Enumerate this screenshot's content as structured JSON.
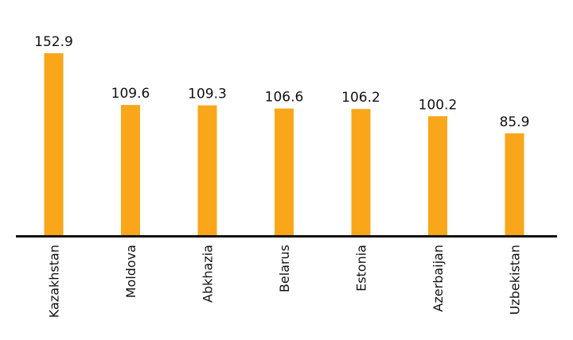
{
  "chart_data": {
    "type": "bar",
    "categories": [
      "Kazakhstan",
      "Moldova",
      "Abkhazia",
      "Belarus",
      "Estonia",
      "Azerbaijan",
      "Uzbekistan"
    ],
    "values": [
      152.9,
      109.6,
      109.3,
      106.6,
      106.2,
      100.2,
      85.9
    ],
    "value_labels": [
      "152.9",
      "109.6",
      "109.3",
      "106.6",
      "106.2",
      "100.2",
      "85.9"
    ],
    "title": "",
    "xlabel": "",
    "ylabel": "",
    "ylim": [
      0,
      152.9
    ],
    "grid": false,
    "legend": "none",
    "colors": {
      "bar": "#FAA61A",
      "axis": "#111111",
      "text": "#111111"
    }
  }
}
